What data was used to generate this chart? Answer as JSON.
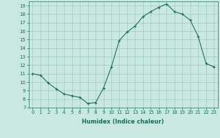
{
  "x": [
    0,
    1,
    2,
    3,
    4,
    5,
    6,
    7,
    8,
    9,
    10,
    11,
    12,
    13,
    14,
    15,
    16,
    17,
    18,
    19,
    20,
    21,
    22,
    23
  ],
  "y": [
    11.0,
    10.8,
    9.9,
    9.2,
    8.6,
    8.4,
    8.2,
    7.5,
    7.6,
    9.3,
    11.8,
    14.9,
    15.9,
    16.6,
    17.7,
    18.3,
    18.8,
    19.2,
    18.3,
    18.0,
    17.3,
    15.4,
    12.2,
    11.8
  ],
  "line_color": "#1a6b5a",
  "marker": "+",
  "marker_size": 3,
  "bg_color": "#c8e8e0",
  "grid_color": "#a0c8c0",
  "xlabel": "Humidex (Indice chaleur)",
  "xlim": [
    -0.5,
    23.5
  ],
  "ylim": [
    7,
    19.5
  ],
  "yticks": [
    7,
    8,
    9,
    10,
    11,
    12,
    13,
    14,
    15,
    16,
    17,
    18,
    19
  ],
  "xticks": [
    0,
    1,
    2,
    3,
    4,
    5,
    6,
    7,
    8,
    9,
    10,
    11,
    12,
    13,
    14,
    15,
    16,
    17,
    18,
    19,
    20,
    21,
    22,
    23
  ],
  "label_color": "#1a6b5a",
  "tick_color": "#1a6b5a"
}
